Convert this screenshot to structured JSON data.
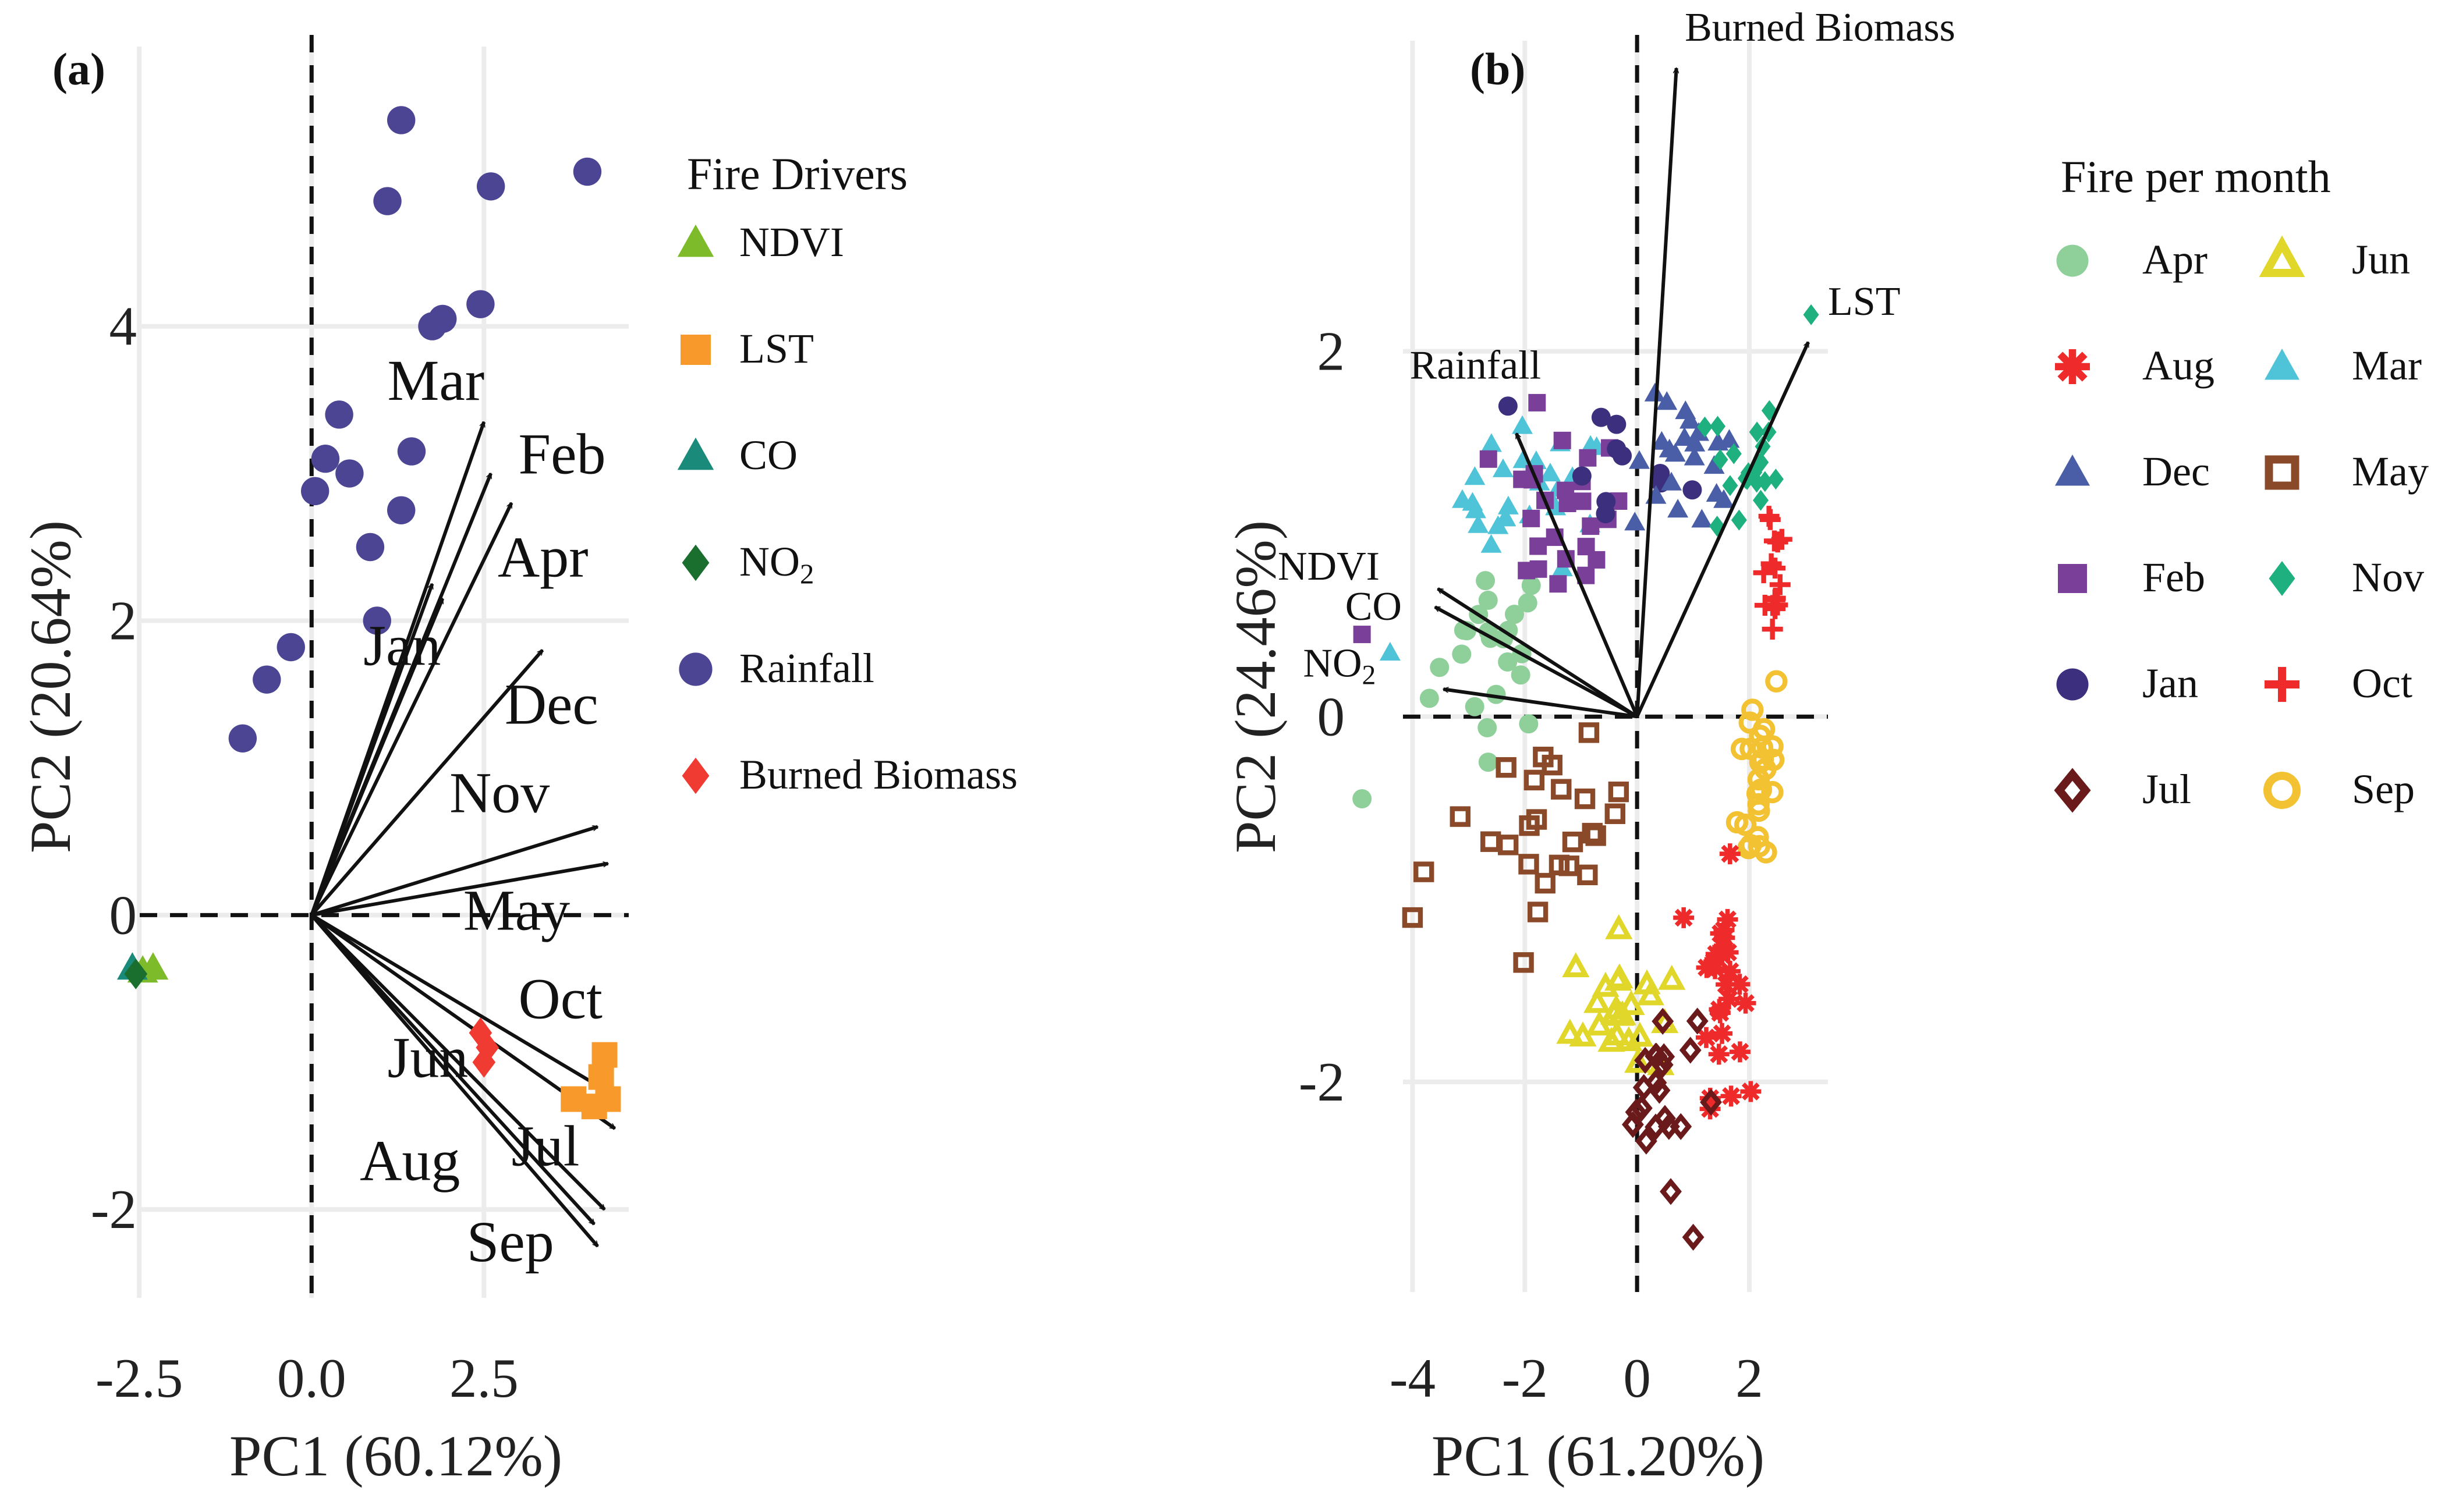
{
  "chart_data": [
    {
      "panel": "(a)",
      "type": "scatter",
      "subtype": "pca-biplot",
      "xlabel": "PC1 (60.12%)",
      "ylabel": "PC2 (20.64%)",
      "xlim": [
        -3.0,
        4.6
      ],
      "ylim": [
        -2.6,
        5.9
      ],
      "xticks": [
        -2.5,
        0.0,
        2.5
      ],
      "xtick_labels": [
        "-2.5",
        "0.0",
        "2.5"
      ],
      "yticks": [
        -2,
        0,
        2,
        4
      ],
      "ytick_labels": [
        "-2",
        "0",
        "2",
        "4"
      ],
      "legend_title": "Fire Drivers",
      "legend": [
        {
          "label": "NDVI",
          "marker": "triangle",
          "color": "#7dbb2a"
        },
        {
          "label": "LST",
          "marker": "square",
          "color": "#f79a2b"
        },
        {
          "label": "CO",
          "marker": "triangle",
          "color": "#1a8a7a"
        },
        {
          "label": "NO",
          "sub": "2",
          "marker": "diamond",
          "color": "#1a6e2e"
        },
        {
          "label": "Rainfall",
          "marker": "circle",
          "color": "#4b4594"
        },
        {
          "label": "Burned Biomass",
          "marker": "diamond",
          "color": "#ef3b32"
        }
      ],
      "points": [
        {
          "group": "Rainfall",
          "x": 1.3,
          "y": 5.4
        },
        {
          "group": "Rainfall",
          "x": 4.0,
          "y": 5.05
        },
        {
          "group": "Rainfall",
          "x": 2.6,
          "y": 4.95
        },
        {
          "group": "Rainfall",
          "x": 1.1,
          "y": 4.85
        },
        {
          "group": "Rainfall",
          "x": 2.45,
          "y": 4.15
        },
        {
          "group": "Rainfall",
          "x": 1.9,
          "y": 4.05
        },
        {
          "group": "Rainfall",
          "x": 1.75,
          "y": 4.0
        },
        {
          "group": "Rainfall",
          "x": 0.4,
          "y": 3.4
        },
        {
          "group": "Rainfall",
          "x": 1.45,
          "y": 3.15
        },
        {
          "group": "Rainfall",
          "x": 0.2,
          "y": 3.1
        },
        {
          "group": "Rainfall",
          "x": 0.55,
          "y": 3.0
        },
        {
          "group": "Rainfall",
          "x": 0.05,
          "y": 2.88
        },
        {
          "group": "Rainfall",
          "x": 1.3,
          "y": 2.75
        },
        {
          "group": "Rainfall",
          "x": 0.85,
          "y": 2.5
        },
        {
          "group": "Rainfall",
          "x": 0.95,
          "y": 2.0
        },
        {
          "group": "Rainfall",
          "x": -0.3,
          "y": 1.82
        },
        {
          "group": "Rainfall",
          "x": -0.65,
          "y": 1.6
        },
        {
          "group": "Rainfall",
          "x": -1.0,
          "y": 1.2
        },
        {
          "group": "NDVI",
          "x": -2.3,
          "y": -0.36
        },
        {
          "group": "NDVI",
          "x": -2.45,
          "y": -0.38
        },
        {
          "group": "CO",
          "x": -2.6,
          "y": -0.36
        },
        {
          "group": "NO2",
          "x": -2.55,
          "y": -0.4
        },
        {
          "group": "Burned Biomass",
          "x": 2.45,
          "y": -0.8
        },
        {
          "group": "Burned Biomass",
          "x": 2.55,
          "y": -0.9
        },
        {
          "group": "Burned Biomass",
          "x": 2.5,
          "y": -1.0
        },
        {
          "group": "LST",
          "x": 4.25,
          "y": -0.95
        },
        {
          "group": "LST",
          "x": 4.2,
          "y": -1.1
        },
        {
          "group": "LST",
          "x": 3.8,
          "y": -1.25
        },
        {
          "group": "LST",
          "x": 4.1,
          "y": -1.3
        },
        {
          "group": "LST",
          "x": 4.3,
          "y": -1.25
        }
      ],
      "arrows": [
        {
          "label": "Mar",
          "x": 2.5,
          "y": 3.35
        },
        {
          "label": "Feb",
          "x": 2.6,
          "y": 3.0
        },
        {
          "label": "Apr",
          "x": 2.9,
          "y": 2.8
        },
        {
          "label": "Jan",
          "x": 1.75,
          "y": 2.25
        },
        {
          "label": "Jan",
          "x": 1.9,
          "y": 2.15
        },
        {
          "label": "Dec",
          "x": 3.35,
          "y": 1.8
        },
        {
          "label": "Nov",
          "x": 4.15,
          "y": 0.6
        },
        {
          "label": "May",
          "x": 4.3,
          "y": 0.35
        },
        {
          "label": "Oct",
          "x": 4.3,
          "y": -1.2
        },
        {
          "label": "Jun",
          "x": 4.4,
          "y": -1.45
        },
        {
          "label": "Jul",
          "x": 4.25,
          "y": -2.0
        },
        {
          "label": "Aug",
          "x": 4.1,
          "y": -2.1
        },
        {
          "label": "Sep",
          "x": 4.15,
          "y": -2.25
        }
      ],
      "arrow_labels": [
        {
          "label": "Mar",
          "x": 1.1,
          "y": 3.5
        },
        {
          "label": "Feb",
          "x": 3.0,
          "y": 3.0
        },
        {
          "label": "Apr",
          "x": 2.7,
          "y": 2.3
        },
        {
          "label": "Jan",
          "x": 0.75,
          "y": 1.7
        },
        {
          "label": "Dec",
          "x": 2.8,
          "y": 1.3
        },
        {
          "label": "Nov",
          "x": 2.0,
          "y": 0.7
        },
        {
          "label": "May",
          "x": 2.2,
          "y": -0.1
        },
        {
          "label": "Oct",
          "x": 3.0,
          "y": -0.7
        },
        {
          "label": "Jun",
          "x": 1.1,
          "y": -1.1
        },
        {
          "label": "Aug",
          "x": 0.7,
          "y": -1.8
        },
        {
          "label": "Jul",
          "x": 2.9,
          "y": -1.7
        },
        {
          "label": "Sep",
          "x": 2.25,
          "y": -2.35
        }
      ]
    },
    {
      "panel": "(b)",
      "type": "scatter",
      "subtype": "pca-biplot",
      "xlabel": "PC1 (61.20%)",
      "ylabel": "PC2 (24.46%)",
      "xlim": [
        -5.0,
        3.4
      ],
      "ylim": [
        -3.15,
        3.7
      ],
      "xticks": [
        -4,
        -2,
        0,
        2
      ],
      "xtick_labels": [
        "-4",
        "-2",
        "0",
        "2"
      ],
      "yticks": [
        -2,
        0,
        2
      ],
      "ytick_labels": [
        "-2",
        "0",
        "2"
      ],
      "legend_title": "Fire per month",
      "legend": [
        {
          "label": "Apr",
          "marker": "circle",
          "color": "#8fcf9a"
        },
        {
          "label": "Jun",
          "marker": "triangle-open",
          "color": "#e0d72a"
        },
        {
          "label": "Aug",
          "marker": "asterisk",
          "color": "#ef2a2a"
        },
        {
          "label": "Mar",
          "marker": "triangle",
          "color": "#4fc3d8"
        },
        {
          "label": "Dec",
          "marker": "triangle",
          "color": "#4a5ea8"
        },
        {
          "label": "May",
          "marker": "square-open",
          "color": "#8a4a2a"
        },
        {
          "label": "Feb",
          "marker": "square",
          "color": "#7a3f98"
        },
        {
          "label": "Nov",
          "marker": "diamond",
          "color": "#1eb07e"
        },
        {
          "label": "Jan",
          "marker": "circle",
          "color": "#3b2f7e"
        },
        {
          "label": "Oct",
          "marker": "plus",
          "color": "#ef2a2a"
        },
        {
          "label": "Jul",
          "marker": "diamond-open",
          "color": "#6a1a1a"
        },
        {
          "label": "Sep",
          "marker": "circle-open",
          "color": "#f2c232"
        }
      ],
      "arrows": [
        {
          "label": "Burned Biomass",
          "x": 0.7,
          "y": 3.55
        },
        {
          "label": "LST",
          "x": 3.05,
          "y": 2.05
        },
        {
          "label": "Rainfall",
          "x": -2.15,
          "y": 1.55
        },
        {
          "label": "NDVI",
          "x": -3.55,
          "y": 0.7
        },
        {
          "label": "CO",
          "x": -3.6,
          "y": 0.6
        },
        {
          "label": "NO2",
          "x": -3.45,
          "y": 0.15
        }
      ],
      "arrow_labels": [
        {
          "label": "Burned Biomass",
          "x": 0.85,
          "y": 3.7
        },
        {
          "label": "LST",
          "x": 3.4,
          "y": 2.2
        },
        {
          "label": "Rainfall",
          "x": -4.05,
          "y": 1.85
        },
        {
          "label": "NDVI",
          "x": -6.4,
          "y": 0.75
        },
        {
          "label": "CO",
          "x": -5.2,
          "y": 0.53
        },
        {
          "label": "NO",
          "sub": "2",
          "x": -5.95,
          "y": 0.22
        }
      ],
      "clusters": [
        {
          "group": "Apr",
          "cx": -2.5,
          "cy": 0.4,
          "sx": 0.9,
          "sy": 0.45,
          "n": 22
        },
        {
          "group": "Mar",
          "cx": -1.8,
          "cy": 1.2,
          "sx": 1.2,
          "sy": 0.35,
          "n": 28
        },
        {
          "group": "Feb",
          "cx": -1.4,
          "cy": 1.1,
          "sx": 1.1,
          "sy": 0.45,
          "n": 26
        },
        {
          "group": "Jan",
          "cx": -0.3,
          "cy": 1.35,
          "sx": 1.1,
          "sy": 0.35,
          "n": 10
        },
        {
          "group": "Dec",
          "cx": 0.9,
          "cy": 1.35,
          "sx": 0.9,
          "sy": 0.35,
          "n": 22
        },
        {
          "group": "Nov",
          "cx": 1.9,
          "cy": 1.35,
          "sx": 0.55,
          "sy": 0.4,
          "n": 20
        },
        {
          "group": "Oct",
          "cx": 2.4,
          "cy": 0.85,
          "sx": 0.25,
          "sy": 0.4,
          "n": 16
        },
        {
          "group": "Sep",
          "cx": 2.2,
          "cy": -0.3,
          "sx": 0.35,
          "sy": 0.6,
          "n": 26
        },
        {
          "group": "Aug",
          "cx": 1.5,
          "cy": -1.45,
          "sx": 0.35,
          "sy": 0.55,
          "n": 28
        },
        {
          "group": "Jun",
          "cx": -0.3,
          "cy": -1.6,
          "sx": 0.8,
          "sy": 0.35,
          "n": 24
        },
        {
          "group": "Jul",
          "cx": 0.4,
          "cy": -2.05,
          "sx": 0.6,
          "sy": 0.4,
          "n": 20
        },
        {
          "group": "May",
          "cx": -1.4,
          "cy": -0.6,
          "sx": 1.1,
          "sy": 0.4,
          "n": 24
        }
      ],
      "points_extra": [
        {
          "group": "Nov",
          "x": 3.1,
          "y": 2.2
        },
        {
          "group": "Jan",
          "x": -2.3,
          "y": 1.7
        },
        {
          "group": "Apr",
          "x": -4.9,
          "y": -0.45
        },
        {
          "group": "Apr",
          "x": -3.7,
          "y": 0.1
        },
        {
          "group": "Feb",
          "x": -4.9,
          "y": 0.45
        },
        {
          "group": "Mar",
          "x": -4.4,
          "y": 0.35
        },
        {
          "group": "May",
          "x": -4.0,
          "y": -1.1
        },
        {
          "group": "May",
          "x": -3.8,
          "y": -0.85
        },
        {
          "group": "Jul",
          "x": 1.0,
          "y": -2.85
        },
        {
          "group": "Jul",
          "x": 0.6,
          "y": -2.6
        }
      ]
    }
  ]
}
